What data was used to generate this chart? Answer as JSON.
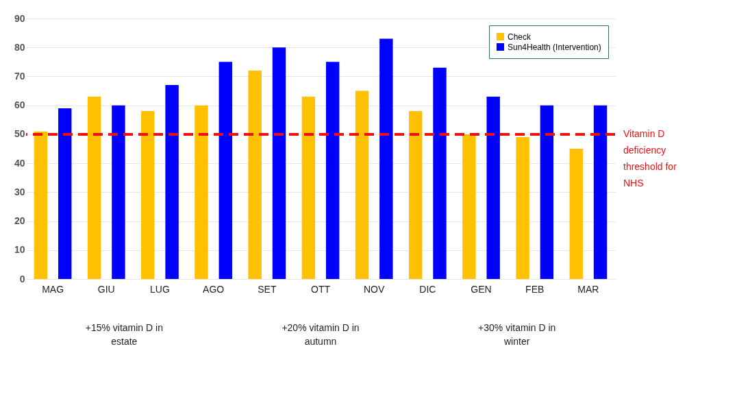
{
  "chart_data": {
    "type": "bar",
    "categories": [
      "MAG",
      "GIU",
      "LUG",
      "AGO",
      "SET",
      "OTT",
      "NOV",
      "DIC",
      "GEN",
      "FEB",
      "MAR"
    ],
    "series": [
      {
        "name": "Check",
        "color": "#ffc000",
        "values": [
          51,
          63,
          58,
          60,
          72,
          63,
          65,
          58,
          50,
          49,
          45
        ]
      },
      {
        "name": "Sun4Health (Intervention)",
        "color": "#0000ff",
        "values": [
          59,
          60,
          67,
          75,
          80,
          75,
          83,
          73,
          63,
          60,
          60
        ]
      }
    ],
    "ylim": [
      0,
      90
    ],
    "yticks": [
      0,
      10,
      20,
      30,
      40,
      50,
      60,
      70,
      80,
      90
    ],
    "grid": "y",
    "legend": "top right",
    "ref_lines": [
      {
        "axis": "y",
        "value": 50,
        "label": "Vitamin D deficiency threshold for NHS",
        "color": "#ee1111",
        "line_style": "dashed"
      }
    ],
    "annotations": [
      "+15% vitamin D in estate",
      "+20% vitamin D in autumn",
      "+30% vitamin D in winter"
    ]
  }
}
